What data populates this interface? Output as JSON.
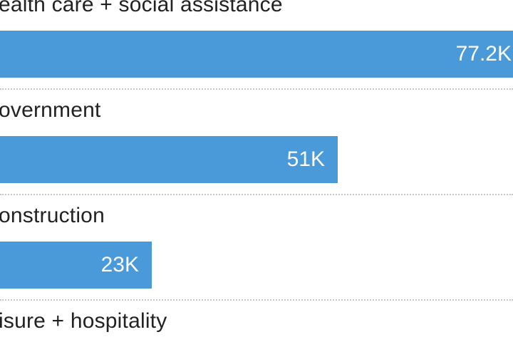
{
  "chart_data": {
    "type": "bar",
    "orientation": "horizontal",
    "categories": [
      "ealth care + social assistance",
      "overnment",
      "onstruction",
      "isure + hospitality"
    ],
    "values": [
      77.2,
      51,
      23,
      null
    ],
    "value_labels": [
      "77.2K",
      "51K",
      "23K",
      ""
    ],
    "bar_color": "#4a99d8",
    "xlim": [
      0,
      77.2
    ],
    "grid": false,
    "legend": "none"
  }
}
